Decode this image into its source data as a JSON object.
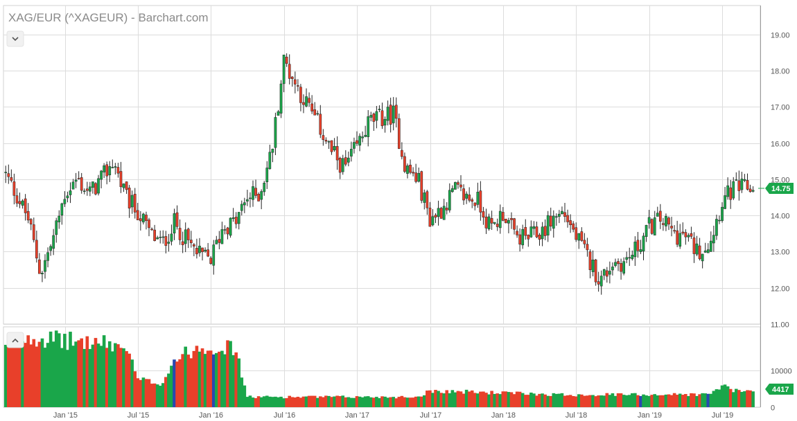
{
  "title": "XAG/EUR (^XAGEUR) - Barchart.com",
  "colors": {
    "up": "#1aa64a",
    "down": "#e8402a",
    "vol_blue": "#2a47b0",
    "grid": "#dcdcdc"
  },
  "icons": {
    "collapse_top": "chevron-down-icon",
    "collapse_bottom": "chevron-up-icon"
  },
  "chart_data": [
    {
      "type": "candlestick",
      "title": "XAG/EUR (^XAGEUR) - Barchart.com",
      "x_ticks": [
        "Jan '15",
        "Jul '15",
        "Jan '16",
        "Jul '16",
        "Jan '17",
        "Jul '17",
        "Jan '18",
        "Jul '18",
        "Jan '19",
        "Jul '19"
      ],
      "x_tick_dates": [
        "2015-01",
        "2015-07",
        "2016-01",
        "2016-07",
        "2017-01",
        "2017-07",
        "2018-01",
        "2018-07",
        "2019-01",
        "2019-07"
      ],
      "y_ticks": [
        "11.00",
        "12.00",
        "13.00",
        "14.00",
        "15.00",
        "16.00",
        "17.00",
        "18.00",
        "19.00"
      ],
      "ylim": [
        11.0,
        19.8
      ],
      "last_price_label": "14.75",
      "grid": true,
      "key_points": [
        {
          "date": "2014-08",
          "close": 15.2
        },
        {
          "date": "2014-09",
          "close": 14.6
        },
        {
          "date": "2014-10",
          "close": 13.9
        },
        {
          "date": "2014-11",
          "close": 12.4
        },
        {
          "date": "2014-12",
          "close": 13.3
        },
        {
          "date": "2015-01",
          "close": 14.6
        },
        {
          "date": "2015-02",
          "close": 15.0
        },
        {
          "date": "2015-03",
          "close": 14.6
        },
        {
          "date": "2015-04",
          "close": 15.0
        },
        {
          "date": "2015-05",
          "close": 15.5
        },
        {
          "date": "2015-06",
          "close": 14.5
        },
        {
          "date": "2015-07",
          "close": 14.1
        },
        {
          "date": "2015-08",
          "close": 13.5
        },
        {
          "date": "2015-09",
          "close": 13.2
        },
        {
          "date": "2015-10",
          "close": 13.8
        },
        {
          "date": "2015-11",
          "close": 13.3
        },
        {
          "date": "2015-12",
          "close": 12.9
        },
        {
          "date": "2016-01",
          "close": 12.8
        },
        {
          "date": "2016-02",
          "close": 13.7
        },
        {
          "date": "2016-03",
          "close": 13.8
        },
        {
          "date": "2016-04",
          "close": 14.5
        },
        {
          "date": "2016-05",
          "close": 14.6
        },
        {
          "date": "2016-06",
          "close": 15.8
        },
        {
          "date": "2016-07",
          "close": 18.3
        },
        {
          "date": "2016-08",
          "close": 17.6
        },
        {
          "date": "2016-09",
          "close": 17.0
        },
        {
          "date": "2016-10",
          "close": 16.4
        },
        {
          "date": "2016-11",
          "close": 15.7
        },
        {
          "date": "2016-12",
          "close": 15.3
        },
        {
          "date": "2017-01",
          "close": 15.9
        },
        {
          "date": "2017-02",
          "close": 16.6
        },
        {
          "date": "2017-03",
          "close": 16.7
        },
        {
          "date": "2017-04",
          "close": 16.8
        },
        {
          "date": "2017-05",
          "close": 15.3
        },
        {
          "date": "2017-06",
          "close": 15.0
        },
        {
          "date": "2017-07",
          "close": 13.9
        },
        {
          "date": "2017-08",
          "close": 14.2
        },
        {
          "date": "2017-09",
          "close": 14.7
        },
        {
          "date": "2017-10",
          "close": 14.5
        },
        {
          "date": "2017-11",
          "close": 14.4
        },
        {
          "date": "2017-12",
          "close": 13.6
        },
        {
          "date": "2018-01",
          "close": 14.1
        },
        {
          "date": "2018-02",
          "close": 13.4
        },
        {
          "date": "2018-03",
          "close": 13.4
        },
        {
          "date": "2018-04",
          "close": 13.5
        },
        {
          "date": "2018-05",
          "close": 13.9
        },
        {
          "date": "2018-06",
          "close": 14.1
        },
        {
          "date": "2018-07",
          "close": 13.4
        },
        {
          "date": "2018-08",
          "close": 12.8
        },
        {
          "date": "2018-09",
          "close": 12.2
        },
        {
          "date": "2018-10",
          "close": 12.7
        },
        {
          "date": "2018-11",
          "close": 12.7
        },
        {
          "date": "2018-12",
          "close": 13.1
        },
        {
          "date": "2019-01",
          "close": 13.7
        },
        {
          "date": "2019-02",
          "close": 13.9
        },
        {
          "date": "2019-03",
          "close": 13.5
        },
        {
          "date": "2019-04",
          "close": 13.4
        },
        {
          "date": "2019-05",
          "close": 13.0
        },
        {
          "date": "2019-06",
          "close": 13.3
        },
        {
          "date": "2019-07",
          "close": 14.4
        },
        {
          "date": "2019-08",
          "close": 14.75
        }
      ]
    },
    {
      "type": "bar",
      "title": "",
      "series_name": "Volume",
      "y_ticks": [
        "0",
        "10000"
      ],
      "ylim": [
        0,
        22000
      ],
      "last_value_label": "4417",
      "volume_key_points": [
        {
          "date": "2014-08",
          "value": 16000
        },
        {
          "date": "2014-10",
          "value": 19500
        },
        {
          "date": "2014-12",
          "value": 18500
        },
        {
          "date": "2015-02",
          "value": 18000
        },
        {
          "date": "2015-04",
          "value": 17500
        },
        {
          "date": "2015-06",
          "value": 16500
        },
        {
          "date": "2015-07",
          "value": 7500
        },
        {
          "date": "2015-09",
          "value": 6500
        },
        {
          "date": "2015-10",
          "value": 13000
        },
        {
          "date": "2015-12",
          "value": 16500
        },
        {
          "date": "2016-02",
          "value": 16500
        },
        {
          "date": "2016-03",
          "value": 16000
        },
        {
          "date": "2016-04",
          "value": 2800
        },
        {
          "date": "2017-06",
          "value": 2800
        },
        {
          "date": "2017-07",
          "value": 4500
        },
        {
          "date": "2018-06",
          "value": 3400
        },
        {
          "date": "2019-06",
          "value": 3500
        },
        {
          "date": "2019-07",
          "value": 6000
        },
        {
          "date": "2019-08",
          "value": 4417
        }
      ]
    }
  ]
}
